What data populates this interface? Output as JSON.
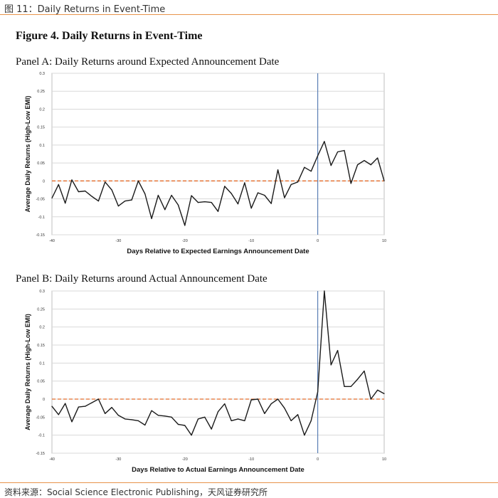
{
  "header": {
    "label": "图 11：Daily Returns in Event-Time"
  },
  "figure_title": "Figure 4. Daily Returns in Event-Time",
  "footer": {
    "source": "资料来源：Social Science Electronic Publishing，天风证券研究所"
  },
  "colors": {
    "line": "#1a1a1a",
    "zero_line": "#e46c2a",
    "event_line": "#5b7fb5",
    "grid": "#d9d9d9",
    "accent_rule": "#e8934a"
  },
  "chart_data": [
    {
      "type": "line",
      "title": "Panel A: Daily Returns around Expected Announcement Date",
      "xlabel": "Days Relative to Expected Earnings Announcement Date",
      "ylabel": "Average Daily Returns (High-Low EMI)",
      "xlim": [
        -40,
        10
      ],
      "ylim": [
        -0.15,
        0.3
      ],
      "x_ticks": [
        "-40",
        "-30",
        "-20",
        "-10",
        "0",
        "10"
      ],
      "y_ticks": [
        "-0.15",
        "-0.1",
        "-0.05",
        "0",
        "0.05",
        "0.1",
        "0.15",
        "0.2",
        "0.25",
        "0.3"
      ],
      "grid": true,
      "event_line_x": 0,
      "zero_reference_line": true,
      "x": [
        -40,
        -39,
        -38,
        -37,
        -36,
        -35,
        -34,
        -33,
        -32,
        -31,
        -30,
        -29,
        -28,
        -27,
        -26,
        -25,
        -24,
        -23,
        -22,
        -21,
        -20,
        -19,
        -18,
        -17,
        -16,
        -15,
        -14,
        -13,
        -12,
        -11,
        -10,
        -9,
        -8,
        -7,
        -6,
        -5,
        -4,
        -3,
        -2,
        -1,
        0,
        1,
        2,
        3,
        4,
        5,
        6,
        7,
        8,
        9,
        10
      ],
      "series": [
        {
          "values": [
            -0.048,
            -0.01,
            -0.062,
            0.003,
            -0.03,
            -0.028,
            -0.043,
            -0.056,
            -0.003,
            -0.025,
            -0.07,
            -0.056,
            -0.053,
            0.0,
            -0.036,
            -0.105,
            -0.04,
            -0.08,
            -0.04,
            -0.067,
            -0.124,
            -0.041,
            -0.06,
            -0.058,
            -0.06,
            -0.085,
            -0.015,
            -0.035,
            -0.064,
            -0.005,
            -0.076,
            -0.033,
            -0.04,
            -0.063,
            0.031,
            -0.047,
            -0.01,
            -0.003,
            0.038,
            0.027,
            0.07,
            0.11,
            0.043,
            0.081,
            0.085,
            -0.007,
            0.045,
            0.057,
            0.045,
            0.064,
            0.0
          ]
        }
      ]
    },
    {
      "type": "line",
      "title": "Panel B: Daily Returns around Actual Announcement Date",
      "xlabel": "Days Relative to Actual Earnings Announcement Date",
      "ylabel": "Average Daily Returns (High-Low EMI)",
      "xlim": [
        -40,
        10
      ],
      "ylim": [
        -0.15,
        0.3
      ],
      "x_ticks": [
        "-40",
        "-30",
        "-20",
        "-10",
        "0",
        "10"
      ],
      "y_ticks": [
        "-0.15",
        "-0.1",
        "-0.05",
        "0",
        "0.05",
        "0.1",
        "0.15",
        "0.2",
        "0.25",
        "0.3"
      ],
      "grid": true,
      "event_line_x": 0,
      "zero_reference_line": true,
      "x": [
        -40,
        -39,
        -38,
        -37,
        -36,
        -35,
        -34,
        -33,
        -32,
        -31,
        -30,
        -29,
        -28,
        -27,
        -26,
        -25,
        -24,
        -23,
        -22,
        -21,
        -20,
        -19,
        -18,
        -17,
        -16,
        -15,
        -14,
        -13,
        -12,
        -11,
        -10,
        -9,
        -8,
        -7,
        -6,
        -5,
        -4,
        -3,
        -2,
        -1,
        0,
        1,
        2,
        3,
        4,
        5,
        6,
        7,
        8,
        9,
        10
      ],
      "series": [
        {
          "values": [
            -0.02,
            -0.043,
            -0.012,
            -0.063,
            -0.022,
            -0.02,
            -0.01,
            0.0,
            -0.04,
            -0.023,
            -0.045,
            -0.055,
            -0.057,
            -0.06,
            -0.072,
            -0.032,
            -0.045,
            -0.047,
            -0.05,
            -0.07,
            -0.073,
            -0.1,
            -0.055,
            -0.05,
            -0.083,
            -0.035,
            -0.013,
            -0.06,
            -0.055,
            -0.06,
            -0.002,
            0.0,
            -0.04,
            -0.013,
            0.0,
            -0.025,
            -0.06,
            -0.043,
            -0.1,
            -0.06,
            0.02,
            0.3,
            0.095,
            0.135,
            0.035,
            0.035,
            0.055,
            0.078,
            0.0,
            0.025,
            0.015
          ]
        }
      ]
    }
  ]
}
